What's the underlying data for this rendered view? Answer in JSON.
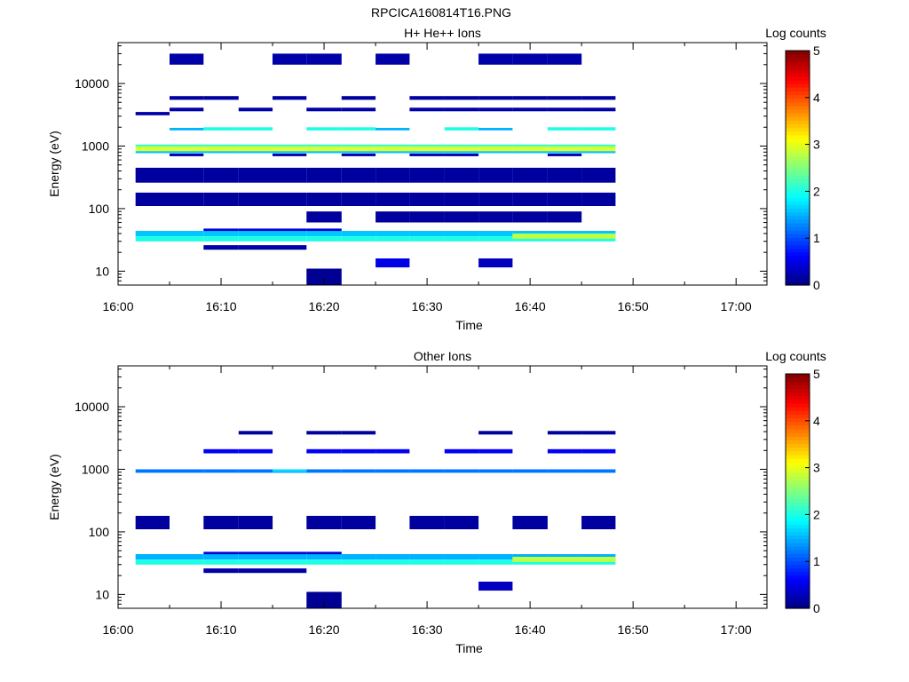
{
  "page_title": "RPCICA160814T16.PNG",
  "chart_data": [
    {
      "type": "heatmap",
      "title": "H+ He++ Ions",
      "xlabel": "Time",
      "ylabel": "Energy (eV)",
      "x_ticks": [
        "16:00",
        "16:10",
        "16:20",
        "16:30",
        "16:40",
        "16:50",
        "17:00"
      ],
      "y_scale": "log",
      "y_ticks": [
        "10",
        "100",
        "1000",
        "10000"
      ],
      "x_range_minutes": [
        0,
        63
      ],
      "y_range_ev": [
        6,
        45000
      ],
      "colorbar": {
        "label": "Log counts",
        "min": 0,
        "max": 5,
        "ticks": [
          "0",
          "1",
          "2",
          "3",
          "4",
          "5"
        ]
      },
      "time_bins_minutes": [
        [
          1.7,
          5
        ],
        [
          5,
          8.3
        ],
        [
          8.3,
          11.7
        ],
        [
          11.7,
          15
        ],
        [
          15,
          18.3
        ],
        [
          18.3,
          21.7
        ],
        [
          21.7,
          25
        ],
        [
          25,
          28.3
        ],
        [
          28.3,
          31.7
        ],
        [
          31.7,
          35
        ],
        [
          35,
          38.3
        ],
        [
          38.3,
          41.7
        ],
        [
          41.7,
          45
        ],
        [
          45,
          48.3
        ],
        [
          48.3,
          50
        ]
      ],
      "cells": [
        {
          "bins": [
            0,
            1,
            2,
            3,
            4,
            5,
            6,
            7,
            8,
            9,
            10,
            11,
            12,
            13
          ],
          "e": [
            830,
            900
          ],
          "v": 3.0
        },
        {
          "bins": [
            0,
            1,
            2,
            3,
            4,
            5,
            6,
            7,
            8,
            9,
            10,
            11,
            12,
            13
          ],
          "e": [
            900,
            980
          ],
          "v": 2.9
        },
        {
          "bins": [
            0,
            1,
            2,
            3,
            4,
            5,
            6,
            7,
            8,
            9,
            10,
            11,
            12,
            13
          ],
          "e": [
            980,
            1060
          ],
          "v": 2.2
        },
        {
          "bins": [
            0,
            1,
            2,
            3,
            4,
            5,
            6,
            7,
            8,
            9,
            10,
            11,
            12,
            13
          ],
          "e": [
            770,
            830
          ],
          "v": 1.6
        },
        {
          "bins": [
            2,
            3,
            5,
            6,
            9,
            12,
            13
          ],
          "e": [
            1780,
            2000
          ],
          "v": 2.0
        },
        {
          "bins": [
            1,
            7,
            10
          ],
          "e": [
            1780,
            1950
          ],
          "v": 1.5
        },
        {
          "bins": [
            0,
            1,
            2,
            3,
            4,
            5,
            6,
            7,
            8,
            9,
            10,
            11,
            12,
            13
          ],
          "e": [
            36,
            44
          ],
          "v": 1.6
        },
        {
          "bins": [
            0,
            1,
            2,
            3,
            4,
            5,
            6,
            7,
            8,
            9,
            10,
            11,
            12,
            13
          ],
          "e": [
            30,
            36
          ],
          "v": 2.0
        },
        {
          "bins": [
            11,
            12,
            13
          ],
          "e": [
            33,
            40
          ],
          "v": 2.8
        },
        {
          "bins": [
            2,
            3,
            4,
            5
          ],
          "e": [
            44,
            48
          ],
          "v": 0.4
        },
        {
          "bins": [
            2,
            3,
            4
          ],
          "e": [
            22,
            26
          ],
          "v": 0.2
        },
        {
          "bins": [
            5
          ],
          "e": [
            6,
            11
          ],
          "v": 0.1
        },
        {
          "bins": [
            7
          ],
          "e": [
            11.5,
            16
          ],
          "v": 0.5
        },
        {
          "bins": [
            10
          ],
          "e": [
            11.5,
            16
          ],
          "v": 0.3
        },
        {
          "bins": [
            1,
            4,
            6,
            8,
            9,
            12
          ],
          "e": [
            690,
            760
          ],
          "v": 0.2
        },
        {
          "bins": [
            0
          ],
          "e": [
            3100,
            3500
          ],
          "v": 0.2
        },
        {
          "bins": [
            1,
            3,
            5,
            6,
            8,
            9,
            10,
            11,
            12,
            13
          ],
          "e": [
            3600,
            4100
          ],
          "v": 0.2
        },
        {
          "bins": [
            1,
            2,
            4,
            6,
            8,
            9,
            10,
            11,
            12,
            13
          ],
          "e": [
            5500,
            6300
          ],
          "v": 0.15
        },
        {
          "bins": [
            1,
            4,
            5,
            7,
            10,
            11,
            12
          ],
          "e": [
            20000,
            30000
          ],
          "v": 0.2
        },
        {
          "bins": [
            0,
            1,
            2,
            3,
            4,
            5,
            6,
            7,
            8,
            9,
            10,
            11,
            12,
            13
          ],
          "e": [
            110,
            180
          ],
          "v": 0.15
        },
        {
          "bins": [
            0,
            1,
            2,
            3,
            4,
            5,
            6,
            7,
            8,
            9,
            10,
            11,
            12,
            13
          ],
          "e": [
            260,
            450
          ],
          "v": 0.15
        },
        {
          "bins": [
            5,
            7,
            8,
            9,
            10,
            11,
            12
          ],
          "e": [
            60,
            90
          ],
          "v": 0.15
        }
      ]
    },
    {
      "type": "heatmap",
      "title": "Other Ions",
      "xlabel": "Time",
      "ylabel": "Energy (eV)",
      "x_ticks": [
        "16:00",
        "16:10",
        "16:20",
        "16:30",
        "16:40",
        "16:50",
        "17:00"
      ],
      "y_scale": "log",
      "y_ticks": [
        "10",
        "100",
        "1000",
        "10000"
      ],
      "x_range_minutes": [
        0,
        63
      ],
      "y_range_ev": [
        6,
        45000
      ],
      "colorbar": {
        "label": "Log counts",
        "min": 0,
        "max": 5,
        "ticks": [
          "0",
          "1",
          "2",
          "3",
          "4",
          "5"
        ]
      },
      "time_bins_minutes": [
        [
          1.7,
          5
        ],
        [
          5,
          8.3
        ],
        [
          8.3,
          11.7
        ],
        [
          11.7,
          15
        ],
        [
          15,
          18.3
        ],
        [
          18.3,
          21.7
        ],
        [
          21.7,
          25
        ],
        [
          25,
          28.3
        ],
        [
          28.3,
          31.7
        ],
        [
          31.7,
          35
        ],
        [
          35,
          38.3
        ],
        [
          38.3,
          41.7
        ],
        [
          41.7,
          45
        ],
        [
          45,
          48.3
        ],
        [
          48.3,
          50
        ]
      ],
      "cells": [
        {
          "bins": [
            0,
            1,
            2,
            3,
            4,
            5,
            6,
            7,
            8,
            9,
            10,
            11,
            12,
            13
          ],
          "e": [
            880,
            1000
          ],
          "v": 1.2
        },
        {
          "bins": [
            4
          ],
          "e": [
            900,
            1000
          ],
          "v": 1.7
        },
        {
          "bins": [
            2,
            3,
            5,
            6,
            7,
            9,
            10,
            12,
            13
          ],
          "e": [
            1800,
            2100
          ],
          "v": 0.6
        },
        {
          "bins": [
            0,
            1,
            2,
            3,
            4,
            5,
            6,
            7,
            8,
            9,
            10,
            11,
            12,
            13
          ],
          "e": [
            36,
            44
          ],
          "v": 1.5
        },
        {
          "bins": [
            0,
            1,
            2,
            3,
            4,
            5,
            6,
            7,
            8,
            9,
            10,
            11,
            12,
            13
          ],
          "e": [
            30,
            36
          ],
          "v": 2.0
        },
        {
          "bins": [
            11,
            12,
            13
          ],
          "e": [
            33,
            40
          ],
          "v": 2.8
        },
        {
          "bins": [
            2,
            3,
            4,
            5
          ],
          "e": [
            44,
            48
          ],
          "v": 0.4
        },
        {
          "bins": [
            2,
            3,
            4
          ],
          "e": [
            22,
            26
          ],
          "v": 0.2
        },
        {
          "bins": [
            5
          ],
          "e": [
            6,
            11
          ],
          "v": 0.1
        },
        {
          "bins": [
            10
          ],
          "e": [
            11.5,
            16
          ],
          "v": 0.3
        },
        {
          "bins": [
            3,
            5,
            6,
            10,
            12,
            13
          ],
          "e": [
            3600,
            4100
          ],
          "v": 0.15
        },
        {
          "bins": [
            0,
            2,
            3,
            5,
            6,
            8,
            9,
            11,
            13
          ],
          "e": [
            110,
            180
          ],
          "v": 0.15
        }
      ]
    }
  ]
}
